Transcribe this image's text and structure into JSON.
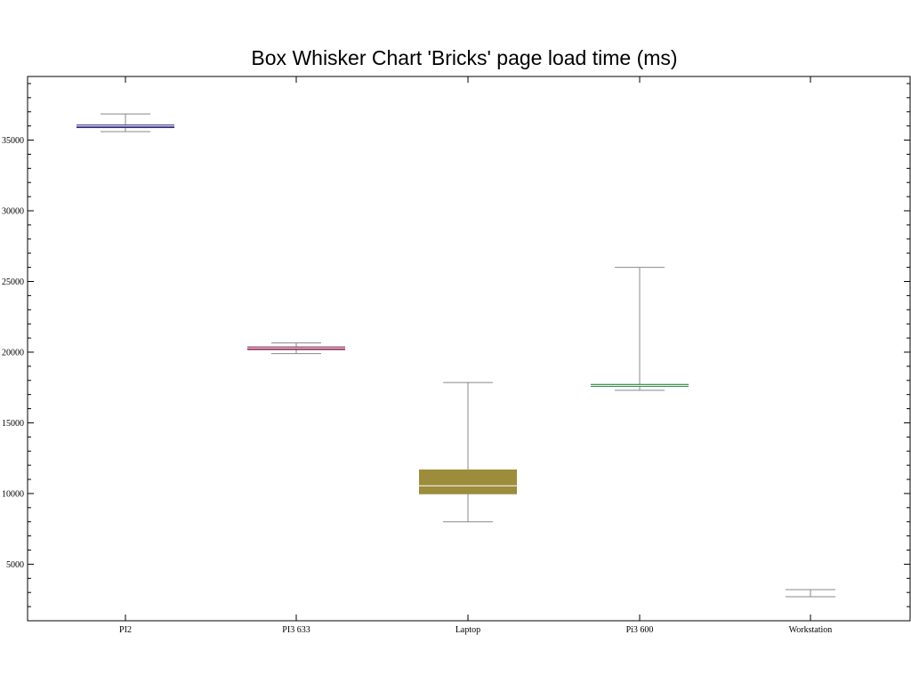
{
  "chart_data": {
    "type": "boxplot",
    "title": "Box Whisker Chart 'Bricks' page load time (ms)",
    "xlabel": "",
    "ylabel": "",
    "ylim": [
      1000,
      39500
    ],
    "yticks_major": [
      5000,
      10000,
      15000,
      20000,
      25000,
      30000,
      35000
    ],
    "yticks_minor_step": 1000,
    "grid": false,
    "categories": [
      "PI2",
      "PI3 633",
      "Laptop",
      "Pi3 600",
      "Workstation"
    ],
    "boxes": [
      {
        "name": "PI2",
        "min": 35600,
        "q1": 35850,
        "median": 36000,
        "q3": 36100,
        "max": 36850,
        "color": "#3b3385"
      },
      {
        "name": "PI3 633",
        "min": 19900,
        "q1": 20150,
        "median": 20300,
        "q3": 20400,
        "max": 20650,
        "color": "#8e2a55"
      },
      {
        "name": "Laptop",
        "min": 8000,
        "q1": 9950,
        "median": 10550,
        "q3": 11700,
        "max": 17850,
        "color": "#9c8c3c"
      },
      {
        "name": "Pi3 600",
        "min": 17300,
        "q1": 17550,
        "median": 17650,
        "q3": 17750,
        "max": 26000,
        "color": "#2f8a45"
      },
      {
        "name": "Workstation",
        "min": 2700,
        "q1": 2700,
        "median": 2700,
        "q3": 2700,
        "max": 3200,
        "color": "#999999"
      }
    ]
  }
}
